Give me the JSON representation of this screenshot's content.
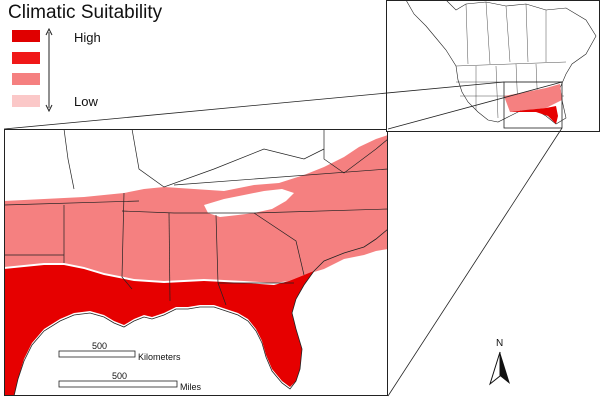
{
  "legend": {
    "title": "Climatic Suitability",
    "high_label": "High",
    "low_label": "Low",
    "colors": [
      "#e00000",
      "#f01818",
      "#f58080",
      "#fbc8c8"
    ]
  },
  "map": {
    "land_color": "#ffffff",
    "boundary_color": "#222222",
    "suitability_classes": [
      "high",
      "medium-high",
      "medium-low",
      "low"
    ]
  },
  "scale_bars": {
    "km": {
      "value": "500",
      "unit": "Kilometers"
    },
    "miles": {
      "value": "500",
      "unit": "Miles"
    }
  },
  "north_arrow": {
    "label": "N"
  }
}
